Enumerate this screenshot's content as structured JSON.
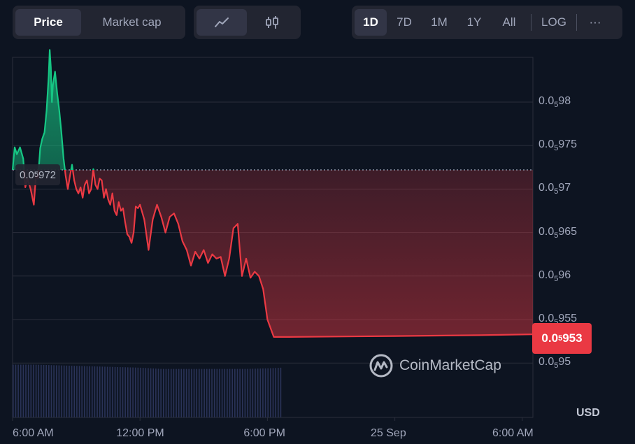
{
  "metric_tabs": {
    "price": "Price",
    "market_cap": "Market cap"
  },
  "chart_type_buttons": {
    "line": "line-chart-icon",
    "candle": "candlestick-icon"
  },
  "ranges": [
    "1D",
    "7D",
    "1M",
    "1Y",
    "All"
  ],
  "log_label": "LOG",
  "more_label": "···",
  "currency": "USD",
  "watermark": "CoinMarketCap",
  "open_label": {
    "prefix": "0.0",
    "sub": "5",
    "suffix": "972"
  },
  "last_label": {
    "prefix": "0.0",
    "sub": "5",
    "suffix": "953"
  },
  "colors": {
    "up": "#16c784",
    "down": "#ea3943",
    "bg": "#0d1421",
    "grid": "#2a2e3b",
    "volume": "#2a3358"
  },
  "chart_data": {
    "type": "line",
    "note_units": "price = 0.0000 + y (displayed as 0.0₅ notation)",
    "ylim": [
      0.9495,
      0.9995
    ],
    "y_ticks": [
      {
        "prefix": "0.0",
        "sub": "5",
        "suffix": "98",
        "value": 0.98
      },
      {
        "prefix": "0.0",
        "sub": "5",
        "suffix": "975",
        "value": 0.975
      },
      {
        "prefix": "0.0",
        "sub": "5",
        "suffix": "97",
        "value": 0.97
      },
      {
        "prefix": "0.0",
        "sub": "5",
        "suffix": "965",
        "value": 0.965
      },
      {
        "prefix": "0.0",
        "sub": "5",
        "suffix": "96",
        "value": 0.96
      },
      {
        "prefix": "0.0",
        "sub": "5",
        "suffix": "955",
        "value": 0.955
      },
      {
        "prefix": "0.0",
        "sub": "5",
        "suffix": "95",
        "value": 0.95
      }
    ],
    "x_ticks": [
      "6:00 AM",
      "12:00 PM",
      "6:00 PM",
      "25 Sep",
      "6:00 AM"
    ],
    "x_tick_hours": [
      0,
      6,
      12,
      18,
      24
    ],
    "open_value": 0.9722,
    "last_value": 0.953,
    "series": [
      {
        "x": [
          0,
          0.1,
          0.2,
          0.35,
          0.5,
          0.6,
          0.7,
          0.85,
          1.0,
          1.1,
          1.2,
          1.3,
          1.4,
          1.5,
          1.6,
          1.7,
          1.75,
          1.8,
          1.85,
          1.9,
          2.0,
          2.1,
          2.2,
          2.3,
          2.4,
          2.5,
          2.6,
          2.7,
          2.8,
          2.9,
          3.0,
          3.1,
          3.2,
          3.3,
          3.4,
          3.5,
          3.6,
          3.7,
          3.8,
          3.9,
          4.0,
          4.1,
          4.2,
          4.3,
          4.4,
          4.5,
          4.6,
          4.7,
          4.8,
          4.9,
          5.0,
          5.1,
          5.2,
          5.3,
          5.4,
          5.5,
          5.6,
          5.7,
          5.8,
          5.9,
          6.0,
          6.2,
          6.4,
          6.6,
          6.8,
          7.0,
          7.2,
          7.4,
          7.6,
          7.8,
          8.0,
          8.2,
          8.4,
          8.6,
          8.8,
          9.0,
          9.2,
          9.4,
          9.6,
          9.8,
          10.0,
          10.2,
          10.4,
          10.6,
          10.8,
          11.0,
          11.2,
          11.4,
          11.6,
          11.8,
          12.0,
          12.3,
          12.6,
          13.0,
          18.0,
          22.0,
          24.5
        ],
        "y": [
          0.9722,
          0.9748,
          0.974,
          0.9748,
          0.9735,
          0.9702,
          0.9712,
          0.97,
          0.9682,
          0.9715,
          0.9712,
          0.9747,
          0.9758,
          0.9765,
          0.979,
          0.983,
          0.986,
          0.984,
          0.98,
          0.982,
          0.9835,
          0.981,
          0.979,
          0.9765,
          0.9735,
          0.9715,
          0.97,
          0.9715,
          0.9728,
          0.971,
          0.97,
          0.9695,
          0.9702,
          0.969,
          0.9705,
          0.971,
          0.9695,
          0.97,
          0.9723,
          0.9705,
          0.97,
          0.9712,
          0.971,
          0.969,
          0.97,
          0.9688,
          0.9682,
          0.9695,
          0.9675,
          0.967,
          0.9685,
          0.9675,
          0.9678,
          0.9662,
          0.9648,
          0.9645,
          0.9638,
          0.965,
          0.968,
          0.9678,
          0.9682,
          0.9665,
          0.963,
          0.9665,
          0.9682,
          0.9668,
          0.965,
          0.9668,
          0.9672,
          0.966,
          0.964,
          0.963,
          0.9612,
          0.9628,
          0.962,
          0.963,
          0.9615,
          0.9625,
          0.962,
          0.9622,
          0.96,
          0.962,
          0.9655,
          0.966,
          0.96,
          0.962,
          0.9598,
          0.9605,
          0.96,
          0.9585,
          0.955,
          0.953,
          0.953,
          0.953,
          0.9531,
          0.9532,
          0.9533
        ]
      }
    ],
    "volume_x": [
      0,
      1,
      2,
      3,
      4,
      5,
      6,
      7,
      8,
      9,
      10,
      11,
      12,
      12.6
    ],
    "volume_level": [
      0.87,
      0.87,
      0.86,
      0.85,
      0.84,
      0.83,
      0.82,
      0.8,
      0.8,
      0.8,
      0.8,
      0.8,
      0.81,
      0.82
    ]
  }
}
